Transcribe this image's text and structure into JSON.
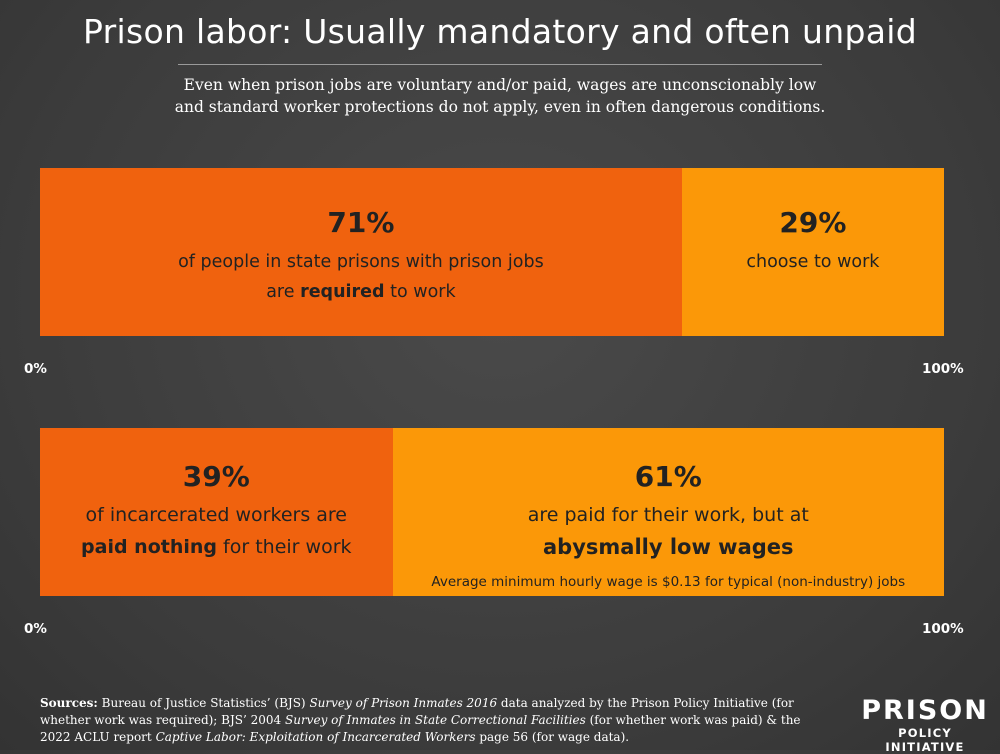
{
  "header": {
    "title": "Prison labor: Usually mandatory and often unpaid",
    "subtitle_line1": "Even when prison jobs are voluntary and/or paid, wages are unconscionably low",
    "subtitle_line2": "and standard worker protections do not apply, even in often dangerous conditions."
  },
  "colors": {
    "dark_segment": "#f0620e",
    "light_segment": "#fb9808",
    "background": "#3f3f3f"
  },
  "chart_data": [
    {
      "type": "bar",
      "orientation": "horizontal-stacked",
      "axis": {
        "min_label": "0%",
        "max_label": "100%"
      },
      "segments": [
        {
          "pct": "71%",
          "value": 71,
          "line1": "of people in state prisons with prison jobs",
          "line2_pre": "are ",
          "line2_bold": "required",
          "line2_post": " to work"
        },
        {
          "pct": "29%",
          "value": 29,
          "line1": "choose to work"
        }
      ]
    },
    {
      "type": "bar",
      "orientation": "horizontal-stacked",
      "axis": {
        "min_label": "0%",
        "max_label": "100%"
      },
      "segments": [
        {
          "pct": "39%",
          "value": 39,
          "line1": "of incarcerated workers are",
          "line2_bold": "paid nothing",
          "line2_post": " for their work"
        },
        {
          "pct": "61%",
          "value": 61,
          "line1": "are paid for their work, but at",
          "line2_bold": "abysmally low wages",
          "note": "Average minimum hourly wage is $0.13 for typical (non-industry) jobs"
        }
      ]
    }
  ],
  "sources": {
    "label": "Sources:",
    "t1": " Bureau of Justice Statistics’ (BJS) ",
    "i1": "Survey of Prison Inmates 2016",
    "t2": " data analyzed by the Prison Policy Initiative (for whether work was required); BJS’ 2004 ",
    "i2": "Survey of Inmates in State Correctional Facilities",
    "t3": " (for whether work was paid) & the 2022 ACLU report ",
    "i3": "Captive Labor: Exploitation of Incarcerated Workers",
    "t4": " page 56 (for wage data)."
  },
  "logo": {
    "main": "PRISON",
    "sub": "POLICY INITIATIVE"
  }
}
